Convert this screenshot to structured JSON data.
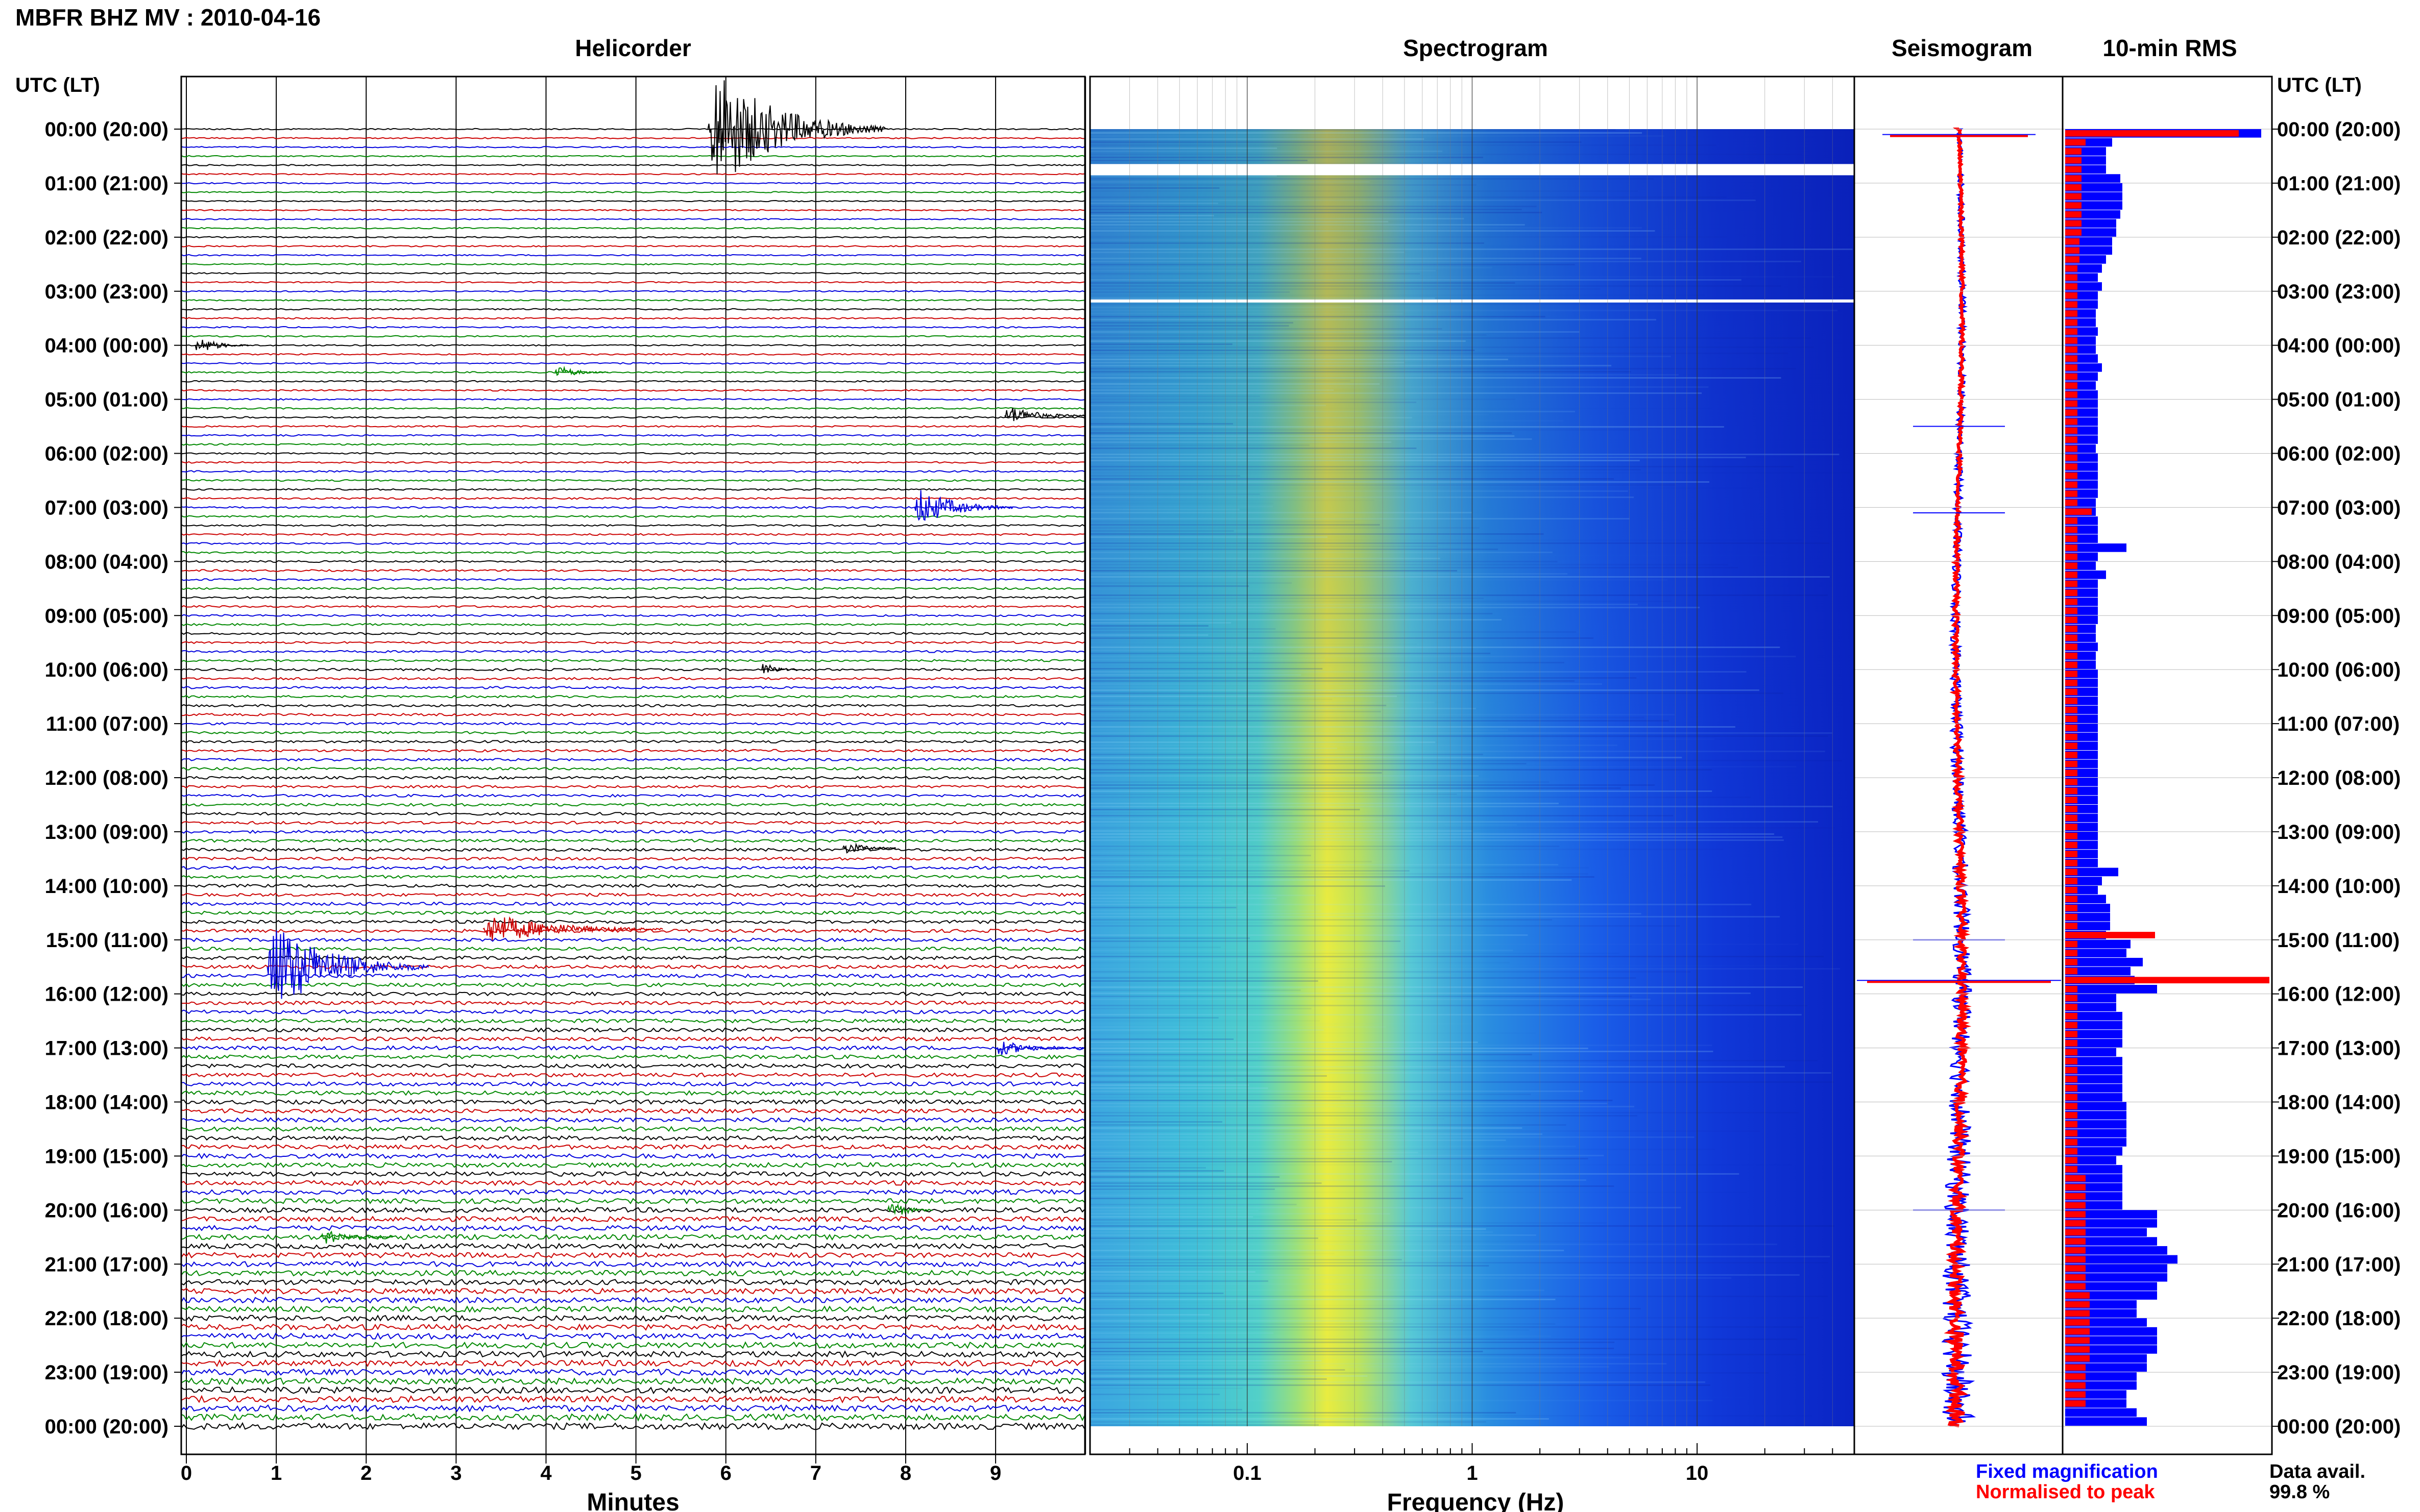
{
  "figure": {
    "title": "MBFR BHZ MV : 2010-04-16",
    "left_axis_label": "UTC (LT)",
    "right_axis_label": "UTC (LT)",
    "panels": {
      "helicorder": "Helicorder",
      "spectrogram": "Spectrogram",
      "seismogram": "Seismogram",
      "rms": "10-min RMS"
    },
    "time_labels": [
      "00:00 (20:00)",
      "01:00 (21:00)",
      "02:00 (22:00)",
      "03:00 (23:00)",
      "04:00 (00:00)",
      "05:00 (01:00)",
      "06:00 (02:00)",
      "07:00 (03:00)",
      "08:00 (04:00)",
      "09:00 (05:00)",
      "10:00 (06:00)",
      "11:00 (07:00)",
      "12:00 (08:00)",
      "13:00 (09:00)",
      "14:00 (10:00)",
      "15:00 (11:00)",
      "16:00 (12:00)",
      "17:00 (13:00)",
      "18:00 (14:00)",
      "19:00 (15:00)",
      "20:00 (16:00)",
      "21:00 (17:00)",
      "22:00 (18:00)",
      "23:00 (19:00)",
      "00:00 (20:00)"
    ],
    "legend": {
      "fixed": "Fixed magnification",
      "normalised": "Normalised to peak",
      "data_avail_label": "Data avail.",
      "data_avail_value": "99.8 %"
    },
    "colors": {
      "trace_cycle": [
        "#000000",
        "#cc0000",
        "#0000dd",
        "#008800"
      ],
      "fixed": "#0000ff",
      "normalised": "#ff0000"
    }
  },
  "chart_data": [
    {
      "type": "line",
      "name": "helicorder",
      "title": "Helicorder",
      "xlabel": "Minutes",
      "ylabel": "UTC (LT)",
      "xlim": [
        0,
        10
      ],
      "x_ticks": [
        "0",
        "1",
        "2",
        "3",
        "4",
        "5",
        "6",
        "7",
        "8",
        "9"
      ],
      "lines_per_hour": 6,
      "events": [
        {
          "hour": 0.0,
          "minute": 5.8,
          "amp": 8.0,
          "dur": 2.0,
          "color": "#000000"
        },
        {
          "hour": 4.0,
          "minute": 0.1,
          "amp": 1.2,
          "dur": 0.6,
          "color": "#000000"
        },
        {
          "hour": 4.5,
          "minute": 4.1,
          "amp": 0.9,
          "dur": 0.6,
          "color": "#008800"
        },
        {
          "hour": 5.3,
          "minute": 9.1,
          "amp": 1.3,
          "dur": 0.9,
          "color": "#000000"
        },
        {
          "hour": 7.0,
          "minute": 8.1,
          "amp": 2.6,
          "dur": 1.1,
          "color": "#0000dd"
        },
        {
          "hour": 10.0,
          "minute": 6.4,
          "amp": 1.0,
          "dur": 0.4,
          "color": "#000000"
        },
        {
          "hour": 13.3,
          "minute": 7.3,
          "amp": 0.9,
          "dur": 0.6,
          "color": "#000000"
        },
        {
          "hour": 14.8,
          "minute": 3.3,
          "amp": 2.0,
          "dur": 2.0,
          "color": "#cc0000"
        },
        {
          "hour": 15.5,
          "minute": 0.9,
          "amp": 6.0,
          "dur": 1.8,
          "color": "#0000dd"
        },
        {
          "hour": 17.0,
          "minute": 9.0,
          "amp": 1.0,
          "dur": 1.0,
          "color": "#0000dd"
        },
        {
          "hour": 20.0,
          "minute": 7.8,
          "amp": 1.4,
          "dur": 0.5,
          "color": "#008800"
        },
        {
          "hour": 20.5,
          "minute": 1.5,
          "amp": 1.0,
          "dur": 0.8,
          "color": "#008800"
        }
      ]
    },
    {
      "type": "heatmap",
      "name": "spectrogram",
      "title": "Spectrogram",
      "xlabel": "Frequency (Hz)",
      "x_scale": "log",
      "xlim": [
        0.02,
        50
      ],
      "x_ticks": [
        "0.1",
        "1",
        "10"
      ],
      "peak_band_hz": [
        0.2,
        0.35
      ]
    },
    {
      "type": "line",
      "name": "seismogram",
      "title": "Seismogram",
      "series": [
        {
          "name": "Fixed magnification",
          "color": "#0000ff"
        },
        {
          "name": "Normalised to peak",
          "color": "#ff0000"
        }
      ],
      "spikes_hour": [
        0.1,
        5.5,
        7.1,
        15.0,
        15.75,
        20.0
      ]
    },
    {
      "type": "bar",
      "name": "rms",
      "title": "10-min RMS",
      "orientation": "horizontal",
      "series": [
        {
          "name": "Fixed magnification",
          "color": "#0000ff",
          "values": [
            0.96,
            0.23,
            0.2,
            0.2,
            0.2,
            0.27,
            0.28,
            0.28,
            0.28,
            0.27,
            0.25,
            0.25,
            0.23,
            0.23,
            0.2,
            0.18,
            0.16,
            0.18,
            0.16,
            0.16,
            0.15,
            0.15,
            0.16,
            0.15,
            0.15,
            0.16,
            0.18,
            0.16,
            0.15,
            0.16,
            0.16,
            0.16,
            0.16,
            0.16,
            0.16,
            0.15,
            0.16,
            0.16,
            0.16,
            0.16,
            0.16,
            0.15,
            0.15,
            0.16,
            0.16,
            0.16,
            0.3,
            0.16,
            0.15,
            0.2,
            0.16,
            0.16,
            0.16,
            0.16,
            0.16,
            0.15,
            0.15,
            0.16,
            0.15,
            0.15,
            0.16,
            0.16,
            0.16,
            0.16,
            0.16,
            0.16,
            0.16,
            0.16,
            0.16,
            0.16,
            0.16,
            0.16,
            0.16,
            0.16,
            0.16,
            0.16,
            0.16,
            0.16,
            0.16,
            0.16,
            0.16,
            0.16,
            0.26,
            0.18,
            0.16,
            0.2,
            0.22,
            0.22,
            0.22,
            0.2,
            0.32,
            0.3,
            0.38,
            0.32,
            0.34,
            0.45,
            0.25,
            0.25,
            0.28,
            0.28,
            0.28,
            0.28,
            0.25,
            0.28,
            0.28,
            0.28,
            0.28,
            0.28,
            0.3,
            0.3,
            0.3,
            0.3,
            0.3,
            0.28,
            0.25,
            0.28,
            0.28,
            0.28,
            0.28,
            0.28,
            0.45,
            0.45,
            0.4,
            0.45,
            0.5,
            0.55,
            0.5,
            0.5,
            0.45,
            0.45,
            0.35,
            0.35,
            0.4,
            0.45,
            0.45,
            0.45,
            0.4,
            0.4,
            0.35,
            0.35,
            0.3,
            0.3,
            0.35,
            0.4
          ]
        },
        {
          "name": "Normalised to peak",
          "color": "#ff0000",
          "values": [
            0.85,
            0.1,
            0.08,
            0.08,
            0.08,
            0.08,
            0.08,
            0.08,
            0.08,
            0.08,
            0.08,
            0.08,
            0.07,
            0.07,
            0.07,
            0.06,
            0.06,
            0.06,
            0.06,
            0.06,
            0.06,
            0.06,
            0.06,
            0.06,
            0.06,
            0.06,
            0.06,
            0.06,
            0.06,
            0.06,
            0.06,
            0.06,
            0.06,
            0.06,
            0.06,
            0.06,
            0.06,
            0.06,
            0.06,
            0.06,
            0.06,
            0.06,
            0.13,
            0.06,
            0.06,
            0.06,
            0.06,
            0.06,
            0.06,
            0.06,
            0.06,
            0.06,
            0.06,
            0.06,
            0.06,
            0.06,
            0.06,
            0.06,
            0.06,
            0.06,
            0.06,
            0.06,
            0.06,
            0.06,
            0.06,
            0.06,
            0.06,
            0.06,
            0.06,
            0.06,
            0.06,
            0.06,
            0.06,
            0.06,
            0.06,
            0.06,
            0.06,
            0.06,
            0.06,
            0.06,
            0.06,
            0.06,
            0.06,
            0.06,
            0.06,
            0.06,
            0.06,
            0.06,
            0.06,
            0.44,
            0.06,
            0.06,
            0.06,
            0.06,
            1.0,
            0.06,
            0.06,
            0.06,
            0.06,
            0.06,
            0.06,
            0.06,
            0.06,
            0.06,
            0.06,
            0.06,
            0.06,
            0.06,
            0.06,
            0.06,
            0.06,
            0.06,
            0.06,
            0.06,
            0.06,
            0.06,
            0.1,
            0.1,
            0.1,
            0.1,
            0.1,
            0.1,
            0.1,
            0.1,
            0.1,
            0.1,
            0.1,
            0.1,
            0.1,
            0.12,
            0.12,
            0.12,
            0.12,
            0.12,
            0.12,
            0.12,
            0.12,
            0.1,
            0.1,
            0.1,
            0.1,
            0.1
          ]
        }
      ]
    }
  ]
}
